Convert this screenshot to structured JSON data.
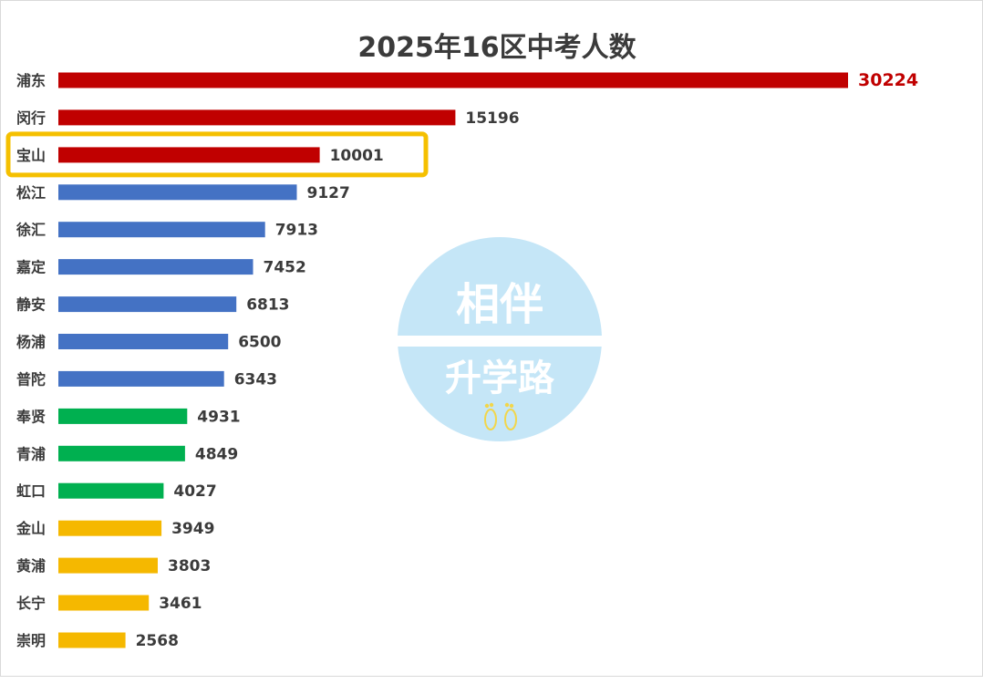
{
  "chart_data": {
    "type": "bar",
    "orientation": "horizontal",
    "title": "2025年16区中考人数",
    "xlabel": "",
    "ylabel": "",
    "xlim": [
      0,
      30224
    ],
    "grid": false,
    "legend": "none",
    "categories": [
      "浦东",
      "闵行",
      "宝山",
      "松江",
      "徐汇",
      "嘉定",
      "静安",
      "杨浦",
      "普陀",
      "奉贤",
      "青浦",
      "虹口",
      "金山",
      "黄浦",
      "长宁",
      "崇明"
    ],
    "values": [
      30224,
      15196,
      10001,
      9127,
      7913,
      7452,
      6813,
      6500,
      6343,
      4931,
      4849,
      4027,
      3949,
      3803,
      3461,
      2568
    ],
    "bar_colors": [
      "#c00000",
      "#c00000",
      "#c00000",
      "#4472c4",
      "#4472c4",
      "#4472c4",
      "#4472c4",
      "#4472c4",
      "#4472c4",
      "#00b050",
      "#00b050",
      "#00b050",
      "#f5b800",
      "#f5b800",
      "#f5b800",
      "#f5b800"
    ],
    "highlight_category": "宝山",
    "highlight_color": "#f5c000",
    "top_value_color": "#c00000"
  },
  "watermark": {
    "line1": "相伴",
    "line2": "升学路",
    "circle_color": "#c5e6f7",
    "icon": "footprints-icon",
    "icon_color": "#f2d64b"
  }
}
